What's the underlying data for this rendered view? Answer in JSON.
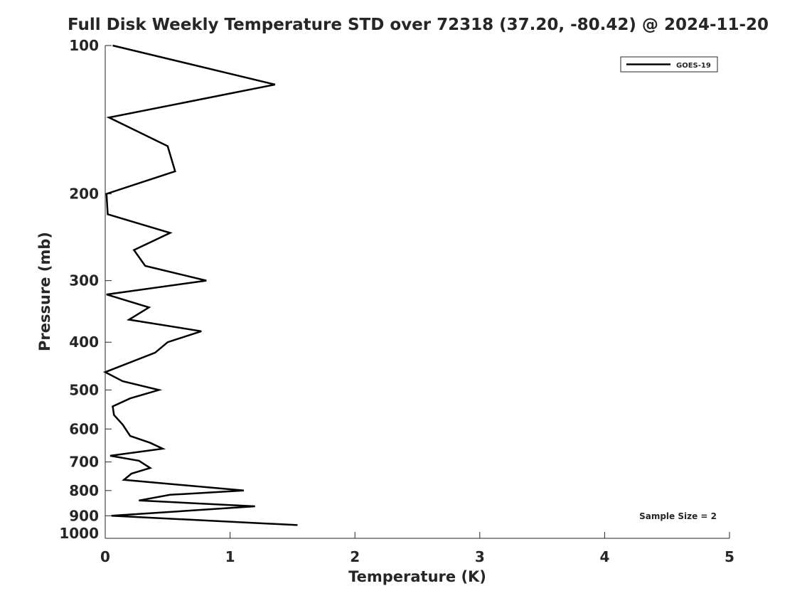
{
  "chart_data": {
    "type": "line",
    "title": "Full Disk Weekly Temperature STD over 72318 (37.20, -80.42) @ 2024-11-20",
    "xlabel": "Temperature (K)",
    "ylabel": "Pressure (mb)",
    "xlim": [
      0,
      5
    ],
    "ylim": [
      100,
      1000
    ],
    "yscale": "log",
    "y_reversed": true,
    "grid": false,
    "xticks": [
      0,
      1,
      2,
      3,
      4,
      5
    ],
    "yticks": [
      100,
      200,
      300,
      400,
      500,
      600,
      700,
      800,
      900,
      1000
    ],
    "legend": {
      "placement": "top-right",
      "entries": [
        "GOES-19"
      ]
    },
    "annotation": "Sample Size = 2",
    "series": [
      {
        "name": "GOES-19",
        "color": "#000000",
        "points": [
          [
            0.06,
            100
          ],
          [
            1.36,
            120
          ],
          [
            0.03,
            140
          ],
          [
            0.5,
            160
          ],
          [
            0.56,
            180
          ],
          [
            0.01,
            200
          ],
          [
            0.02,
            220
          ],
          [
            0.52,
            240
          ],
          [
            0.23,
            260
          ],
          [
            0.32,
            280
          ],
          [
            0.81,
            300
          ],
          [
            0.01,
            320
          ],
          [
            0.35,
            340
          ],
          [
            0.19,
            360
          ],
          [
            0.77,
            380
          ],
          [
            0.5,
            400
          ],
          [
            0.4,
            420
          ],
          [
            0.0,
            460
          ],
          [
            0.14,
            480
          ],
          [
            0.43,
            500
          ],
          [
            0.2,
            520
          ],
          [
            0.06,
            540
          ],
          [
            0.07,
            562
          ],
          [
            0.14,
            588
          ],
          [
            0.2,
            620
          ],
          [
            0.36,
            640
          ],
          [
            0.46,
            658
          ],
          [
            0.04,
            680
          ],
          [
            0.27,
            696
          ],
          [
            0.36,
            720
          ],
          [
            0.21,
            739
          ],
          [
            0.15,
            761
          ],
          [
            1.11,
            800
          ],
          [
            0.52,
            816
          ],
          [
            0.27,
            838
          ],
          [
            1.2,
            861
          ],
          [
            0.05,
            900
          ],
          [
            1.54,
            940
          ]
        ]
      }
    ]
  }
}
